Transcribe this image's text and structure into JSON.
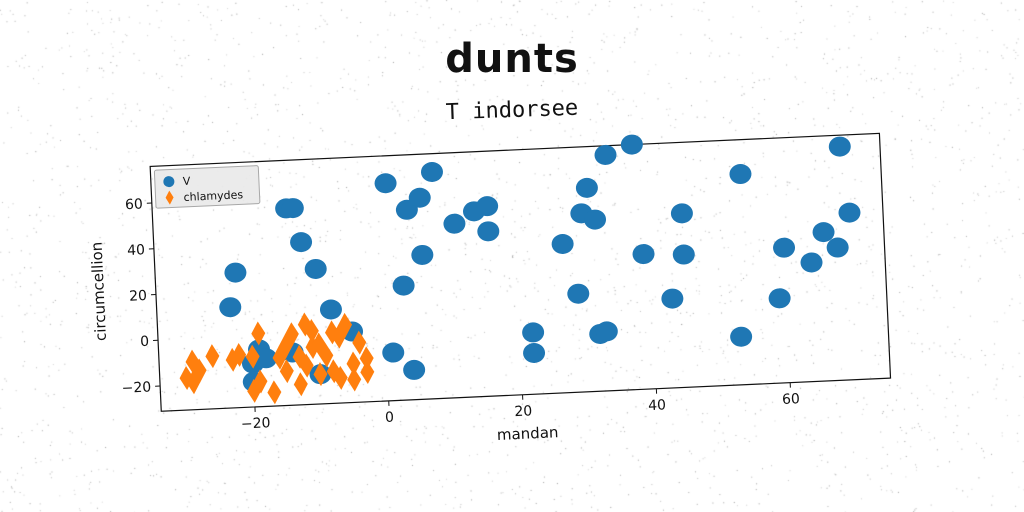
{
  "title": "dunts",
  "subtitle": "T indorsee",
  "chart_data": {
    "type": "scatter",
    "title": "dunts",
    "subtitle": "T indorsee",
    "xlabel": "mandan",
    "ylabel": "circumcellion",
    "xlim": [
      -34,
      75
    ],
    "ylim": [
      -31,
      76
    ],
    "xticks": [
      -20,
      0,
      20,
      40,
      60
    ],
    "yticks": [
      -20,
      0,
      20,
      40,
      60
    ],
    "xtick_labels": [
      "−20",
      "0",
      "20",
      "40",
      "60"
    ],
    "ytick_labels": [
      "−20",
      "0",
      "20",
      "40",
      "60"
    ],
    "grid": false,
    "legend_position": "top-left",
    "series": [
      {
        "name": "V",
        "marker": "circle",
        "color": "#1f77b4",
        "points": [
          [
            -22,
            28
          ],
          [
            -23,
            13
          ],
          [
            -14,
            55
          ],
          [
            -13,
            55
          ],
          [
            -12,
            40
          ],
          [
            -10,
            28
          ],
          [
            -8,
            10
          ],
          [
            -20,
            -12
          ],
          [
            -19,
            -6
          ],
          [
            -18,
            -10
          ],
          [
            -20,
            -20
          ],
          [
            -14,
            -8
          ],
          [
            -10,
            -18
          ],
          [
            -5,
            0
          ],
          [
            1,
            -10
          ],
          [
            1,
            64
          ],
          [
            3,
            19
          ],
          [
            4,
            52
          ],
          [
            4,
            -18
          ],
          [
            6,
            57
          ],
          [
            6,
            32
          ],
          [
            8,
            68
          ],
          [
            11,
            45
          ],
          [
            14,
            50
          ],
          [
            16,
            52
          ],
          [
            16,
            41
          ],
          [
            22,
            -4
          ],
          [
            22,
            -13
          ],
          [
            27,
            34
          ],
          [
            29,
            12
          ],
          [
            30,
            47
          ],
          [
            31,
            58
          ],
          [
            32,
            44
          ],
          [
            32,
            -6
          ],
          [
            33,
            -5
          ],
          [
            34,
            72
          ],
          [
            38,
            76
          ],
          [
            39,
            28
          ],
          [
            43,
            8
          ],
          [
            45,
            45
          ],
          [
            45,
            27
          ],
          [
            53,
            -10
          ],
          [
            54,
            61
          ],
          [
            59,
            6
          ],
          [
            60,
            28
          ],
          [
            64,
            21
          ],
          [
            66,
            34
          ],
          [
            68,
            27
          ],
          [
            69,
            71
          ],
          [
            70,
            42
          ]
        ]
      },
      {
        "name": "chlamydes",
        "marker": "diamond",
        "color": "#ff7f0e",
        "points": [
          [
            -30,
            -17
          ],
          [
            -29,
            -10
          ],
          [
            -29,
            -19
          ],
          [
            -28,
            -14
          ],
          [
            -26,
            -8
          ],
          [
            -23,
            -10
          ],
          [
            -22,
            -8
          ],
          [
            -20,
            -9
          ],
          [
            -20,
            -24
          ],
          [
            -19,
            -20
          ],
          [
            -19,
            1
          ],
          [
            -17,
            -25
          ],
          [
            -16,
            -10
          ],
          [
            -15,
            -5
          ],
          [
            -15,
            -16
          ],
          [
            -14,
            0
          ],
          [
            -13,
            -10
          ],
          [
            -13,
            -22
          ],
          [
            -12,
            4
          ],
          [
            -12,
            -14
          ],
          [
            -11,
            -6
          ],
          [
            -11,
            1
          ],
          [
            -10,
            -5
          ],
          [
            -10,
            -18
          ],
          [
            -9,
            -10
          ],
          [
            -8,
            -17
          ],
          [
            -8,
            0
          ],
          [
            -7,
            -2
          ],
          [
            -7,
            -20
          ],
          [
            -6,
            3
          ],
          [
            -5,
            -14
          ],
          [
            -5,
            -21
          ],
          [
            -4,
            -5
          ],
          [
            -3,
            -18
          ],
          [
            -3,
            -12
          ]
        ]
      }
    ]
  }
}
